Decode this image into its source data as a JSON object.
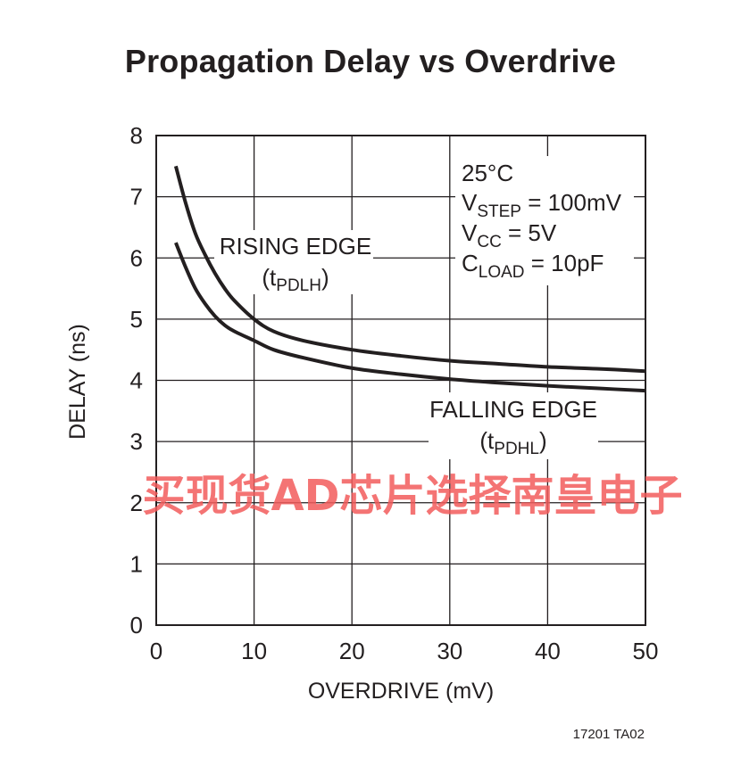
{
  "chart_data": {
    "type": "line",
    "title": "Propagation Delay vs Overdrive",
    "xlabel": "OVERDRIVE (mV)",
    "ylabel": "DELAY (ns)",
    "xlim": [
      0,
      50
    ],
    "ylim": [
      0,
      8
    ],
    "xticks": [
      "0",
      "10",
      "20",
      "30",
      "40",
      "50"
    ],
    "yticks": [
      "0",
      "1",
      "2",
      "3",
      "4",
      "5",
      "6",
      "7",
      "8"
    ],
    "grid": true,
    "series": [
      {
        "name": "RISING EDGE (tPDLH)",
        "x": [
          2,
          3,
          4,
          5,
          6,
          7,
          8,
          10,
          12,
          15,
          20,
          25,
          30,
          35,
          40,
          45,
          50
        ],
        "y": [
          7.5,
          6.9,
          6.4,
          6.05,
          5.75,
          5.5,
          5.3,
          5.0,
          4.8,
          4.65,
          4.5,
          4.4,
          4.32,
          4.27,
          4.22,
          4.19,
          4.15
        ]
      },
      {
        "name": "FALLING EDGE (tPDHL)",
        "x": [
          2,
          3,
          4,
          5,
          6,
          7,
          8,
          10,
          12,
          15,
          20,
          25,
          30,
          35,
          40,
          45,
          50
        ],
        "y": [
          6.25,
          5.85,
          5.5,
          5.25,
          5.05,
          4.9,
          4.8,
          4.65,
          4.5,
          4.37,
          4.2,
          4.1,
          4.02,
          3.96,
          3.91,
          3.87,
          3.83
        ]
      }
    ],
    "annotations": {
      "rising_line1": "RISING EDGE",
      "rising_line2_prefix": "(t",
      "rising_line2_sub": "PDLH",
      "rising_line2_suffix": ")",
      "falling_line1": "FALLING EDGE",
      "falling_line2_prefix": "(t",
      "falling_line2_sub": "PDHL",
      "falling_line2_suffix": ")",
      "cond_temp": "25°C",
      "cond_vstep_main": "V",
      "cond_vstep_sub": "STEP",
      "cond_vstep_val": " = 100mV",
      "cond_vcc_main": "V",
      "cond_vcc_sub": "CC",
      "cond_vcc_val": " = 5V",
      "cond_cload_main": "C",
      "cond_cload_sub": "LOAD",
      "cond_cload_val": " = 10pF"
    },
    "figure_id": "17201 TA02",
    "watermark": "买现货AD芯片选择南皇电子"
  }
}
